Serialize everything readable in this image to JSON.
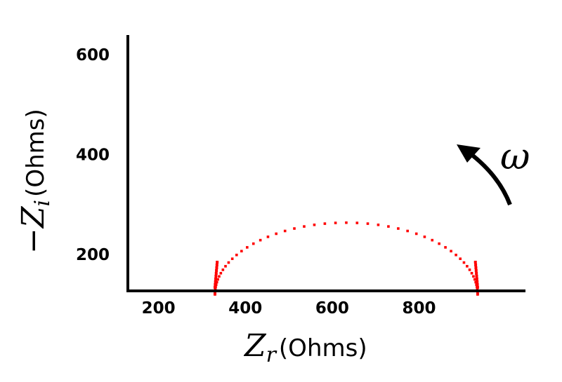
{
  "chart_data": {
    "type": "scatter",
    "xlabel": {
      "symbol": "Z",
      "subscript": "r",
      "unit": "(Ohms)"
    },
    "ylabel": {
      "prefix": "−",
      "symbol": "Z",
      "subscript": "i",
      "unit": "(Ohms)"
    },
    "xlim": [
      140,
      950
    ],
    "ylim": [
      120,
      620
    ],
    "x_ticks": [
      {
        "value": 200,
        "label": "200"
      },
      {
        "value": 400,
        "label": "400"
      },
      {
        "value": 600,
        "label": "600"
      },
      {
        "value": 800,
        "label": "800"
      }
    ],
    "y_ticks": [
      {
        "value": 200,
        "label": "200"
      },
      {
        "value": 400,
        "label": "400"
      },
      {
        "value": 600,
        "label": "600"
      }
    ],
    "grid": false,
    "series": [
      {
        "color": "#ff0000",
        "marker": "square",
        "semicircle": {
          "x_start": 330,
          "x_end": 935,
          "baseline": 120,
          "n_points": 60
        },
        "note": ""
      }
    ],
    "annotation": {
      "text": "ω",
      "arrow": "curved",
      "direction": "increasing frequency"
    }
  }
}
